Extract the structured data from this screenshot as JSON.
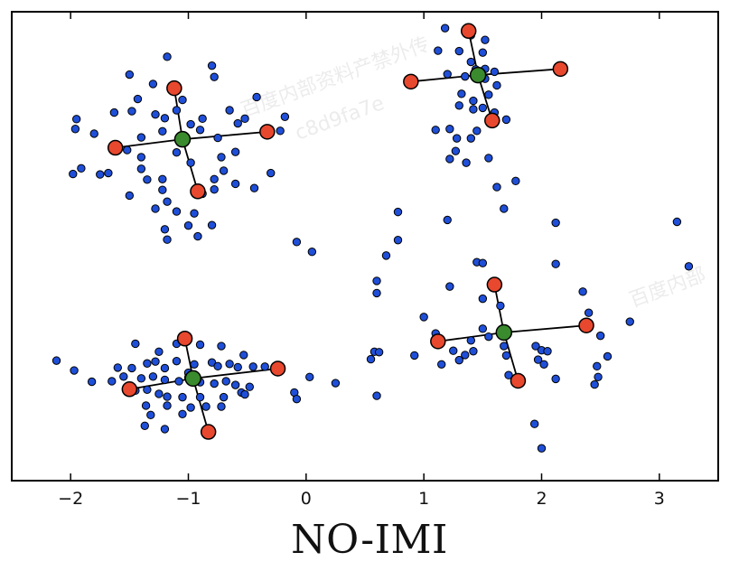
{
  "chart_data": {
    "type": "scatter",
    "title": "",
    "xlabel": "",
    "ylabel": "",
    "xlim": [
      -2.5,
      3.5
    ],
    "ylim": [
      0,
      1
    ],
    "xticks": [
      -2,
      -1,
      0,
      1,
      2,
      3
    ],
    "xtick_labels": [
      "−2",
      "−1",
      "0",
      "1",
      "2",
      "3"
    ],
    "yticks_visible": false,
    "grid": false,
    "colors": {
      "points": "#1f4fd8",
      "centroids": "#3a8a2e",
      "codewords": "#e8482e",
      "lines": "#000000"
    },
    "points": [
      [
        -1.18,
        0.904
      ],
      [
        -0.8,
        0.885
      ],
      [
        -0.78,
        0.861
      ],
      [
        -1.5,
        0.866
      ],
      [
        -1.3,
        0.846
      ],
      [
        -1.43,
        0.814
      ],
      [
        -1.05,
        0.812
      ],
      [
        -0.42,
        0.818
      ],
      [
        -1.63,
        0.785
      ],
      [
        -1.48,
        0.788
      ],
      [
        -1.28,
        0.781
      ],
      [
        -1.2,
        0.773
      ],
      [
        -1.1,
        0.79
      ],
      [
        -0.98,
        0.76
      ],
      [
        -0.88,
        0.772
      ],
      [
        -0.65,
        0.79
      ],
      [
        -1.95,
        0.771
      ],
      [
        -1.96,
        0.75
      ],
      [
        -1.8,
        0.74
      ],
      [
        -1.4,
        0.732
      ],
      [
        -1.22,
        0.745
      ],
      [
        -0.9,
        0.748
      ],
      [
        -0.75,
        0.731
      ],
      [
        -0.58,
        0.762
      ],
      [
        -0.52,
        0.772
      ],
      [
        -0.18,
        0.776
      ],
      [
        -0.22,
        0.746
      ],
      [
        -1.52,
        0.705
      ],
      [
        -1.4,
        0.69
      ],
      [
        -1.1,
        0.7
      ],
      [
        -0.98,
        0.678
      ],
      [
        -0.72,
        0.69
      ],
      [
        -0.6,
        0.701
      ],
      [
        -1.98,
        0.654
      ],
      [
        -1.91,
        0.666
      ],
      [
        -1.75,
        0.653
      ],
      [
        -1.68,
        0.656
      ],
      [
        -1.4,
        0.665
      ],
      [
        -1.35,
        0.642
      ],
      [
        -1.22,
        0.643
      ],
      [
        -0.78,
        0.643
      ],
      [
        -0.7,
        0.661
      ],
      [
        -0.78,
        0.621
      ],
      [
        -0.6,
        0.633
      ],
      [
        -0.44,
        0.624
      ],
      [
        -1.5,
        0.608
      ],
      [
        -1.22,
        0.62
      ],
      [
        -1.18,
        0.595
      ],
      [
        -0.88,
        0.612
      ],
      [
        -0.3,
        0.656
      ],
      [
        -1.28,
        0.58
      ],
      [
        -1.1,
        0.574
      ],
      [
        -0.95,
        0.57
      ],
      [
        -1.2,
        0.536
      ],
      [
        -1.0,
        0.544
      ],
      [
        -0.92,
        0.521
      ],
      [
        -0.8,
        0.545
      ],
      [
        -1.18,
        0.514
      ],
      [
        1.18,
        0.965
      ],
      [
        1.4,
        0.95
      ],
      [
        1.52,
        0.94
      ],
      [
        1.12,
        0.917
      ],
      [
        1.3,
        0.916
      ],
      [
        1.5,
        0.913
      ],
      [
        1.4,
        0.893
      ],
      [
        1.44,
        0.877
      ],
      [
        1.52,
        0.878
      ],
      [
        1.6,
        0.872
      ],
      [
        1.35,
        0.862
      ],
      [
        1.2,
        0.867
      ],
      [
        1.52,
        0.857
      ],
      [
        1.62,
        0.843
      ],
      [
        1.55,
        0.823
      ],
      [
        1.32,
        0.825
      ],
      [
        1.42,
        0.81
      ],
      [
        1.3,
        0.8
      ],
      [
        1.42,
        0.792
      ],
      [
        1.5,
        0.795
      ],
      [
        1.6,
        0.785
      ],
      [
        1.7,
        0.77
      ],
      [
        1.22,
        0.75
      ],
      [
        1.1,
        0.748
      ],
      [
        1.28,
        0.73
      ],
      [
        1.4,
        0.73
      ],
      [
        1.45,
        0.746
      ],
      [
        1.27,
        0.703
      ],
      [
        1.22,
        0.686
      ],
      [
        1.36,
        0.678
      ],
      [
        1.55,
        0.688
      ],
      [
        1.78,
        0.639
      ],
      [
        1.62,
        0.626
      ],
      [
        1.68,
        0.58
      ],
      [
        0.78,
        0.573
      ],
      [
        1.2,
        0.556
      ],
      [
        0.78,
        0.513
      ],
      [
        0.68,
        0.48
      ],
      [
        0.6,
        0.426
      ],
      [
        0.6,
        0.4
      ],
      [
        1.45,
        0.466
      ],
      [
        1.5,
        0.464
      ],
      [
        2.12,
        0.55
      ],
      [
        2.12,
        0.462
      ],
      [
        1.22,
        0.414
      ],
      [
        1.5,
        0.388
      ],
      [
        1.65,
        0.373
      ],
      [
        2.35,
        0.403
      ],
      [
        1.0,
        0.349
      ],
      [
        2.4,
        0.358
      ],
      [
        1.1,
        0.314
      ],
      [
        1.5,
        0.324
      ],
      [
        1.55,
        0.307
      ],
      [
        1.4,
        0.299
      ],
      [
        1.42,
        0.276
      ],
      [
        1.25,
        0.277
      ],
      [
        1.15,
        0.248
      ],
      [
        1.3,
        0.257
      ],
      [
        1.35,
        0.268
      ],
      [
        1.7,
        0.267
      ],
      [
        1.68,
        0.287
      ],
      [
        2.5,
        0.309
      ],
      [
        2.56,
        0.265
      ],
      [
        1.95,
        0.287
      ],
      [
        2.0,
        0.278
      ],
      [
        2.05,
        0.276
      ],
      [
        1.97,
        0.258
      ],
      [
        2.02,
        0.248
      ],
      [
        2.12,
        0.217
      ],
      [
        2.47,
        0.244
      ],
      [
        2.48,
        0.221
      ],
      [
        2.45,
        0.205
      ],
      [
        1.72,
        0.225
      ],
      [
        0.92,
        0.267
      ],
      [
        1.94,
        0.121
      ],
      [
        2.0,
        0.069
      ],
      [
        2.75,
        0.339
      ],
      [
        3.15,
        0.552
      ],
      [
        3.25,
        0.457
      ],
      [
        -0.08,
        0.509
      ],
      [
        0.05,
        0.488
      ],
      [
        -1.45,
        0.292
      ],
      [
        -1.1,
        0.292
      ],
      [
        -0.9,
        0.29
      ],
      [
        -0.72,
        0.287
      ],
      [
        -0.53,
        0.268
      ],
      [
        -1.25,
        0.275
      ],
      [
        -1.6,
        0.241
      ],
      [
        -1.48,
        0.24
      ],
      [
        -1.35,
        0.25
      ],
      [
        -1.28,
        0.254
      ],
      [
        -1.2,
        0.24
      ],
      [
        -1.1,
        0.255
      ],
      [
        -1.0,
        0.23
      ],
      [
        -0.95,
        0.248
      ],
      [
        -0.8,
        0.252
      ],
      [
        -0.75,
        0.244
      ],
      [
        -0.65,
        0.249
      ],
      [
        -0.58,
        0.242
      ],
      [
        -0.45,
        0.243
      ],
      [
        -0.35,
        0.243
      ],
      [
        -0.22,
        0.236
      ],
      [
        -2.12,
        0.256
      ],
      [
        -1.97,
        0.235
      ],
      [
        -1.82,
        0.211
      ],
      [
        -1.65,
        0.212
      ],
      [
        -1.55,
        0.222
      ],
      [
        -1.4,
        0.218
      ],
      [
        -1.3,
        0.222
      ],
      [
        -1.2,
        0.215
      ],
      [
        -1.08,
        0.212
      ],
      [
        -1.0,
        0.22
      ],
      [
        -0.9,
        0.21
      ],
      [
        -0.78,
        0.207
      ],
      [
        -0.68,
        0.212
      ],
      [
        -0.6,
        0.204
      ],
      [
        -0.55,
        0.188
      ],
      [
        -0.48,
        0.2
      ],
      [
        -1.45,
        0.192
      ],
      [
        -1.35,
        0.194
      ],
      [
        -1.25,
        0.185
      ],
      [
        -1.18,
        0.179
      ],
      [
        -1.05,
        0.178
      ],
      [
        -0.9,
        0.178
      ],
      [
        -0.7,
        0.178
      ],
      [
        -0.52,
        0.184
      ],
      [
        -1.36,
        0.16
      ],
      [
        -1.18,
        0.16
      ],
      [
        -0.98,
        0.156
      ],
      [
        -0.72,
        0.158
      ],
      [
        -0.85,
        0.158
      ],
      [
        -1.32,
        0.14
      ],
      [
        -1.05,
        0.142
      ],
      [
        -1.37,
        0.117
      ],
      [
        -1.2,
        0.11
      ],
      [
        -0.1,
        0.188
      ],
      [
        -0.08,
        0.174
      ],
      [
        0.03,
        0.221
      ],
      [
        0.25,
        0.208
      ],
      [
        0.6,
        0.181
      ],
      [
        0.55,
        0.259
      ],
      [
        0.58,
        0.275
      ],
      [
        0.62,
        0.274
      ]
    ],
    "centroids": [
      {
        "x": -1.05,
        "y": 0.728,
        "codewords": [
          [
            -1.62,
            0.71
          ],
          [
            -0.33,
            0.744
          ],
          [
            -1.12,
            0.837
          ],
          [
            -0.92,
            0.617
          ]
        ]
      },
      {
        "x": 1.46,
        "y": 0.865,
        "codewords": [
          [
            0.89,
            0.851
          ],
          [
            2.16,
            0.878
          ],
          [
            1.38,
            0.959
          ],
          [
            1.58,
            0.768
          ]
        ]
      },
      {
        "x": -0.96,
        "y": 0.218,
        "codewords": [
          [
            -1.5,
            0.195
          ],
          [
            -0.24,
            0.239
          ],
          [
            -1.03,
            0.303
          ],
          [
            -0.83,
            0.104
          ]
        ]
      },
      {
        "x": 1.68,
        "y": 0.316,
        "codewords": [
          [
            1.12,
            0.297
          ],
          [
            2.38,
            0.331
          ],
          [
            1.6,
            0.418
          ],
          [
            1.8,
            0.213
          ]
        ]
      }
    ]
  },
  "caption": "NO-IMI",
  "watermarks": [
    "百度内部资料产禁外传",
    "c8d9fa7e",
    "百度内部"
  ]
}
